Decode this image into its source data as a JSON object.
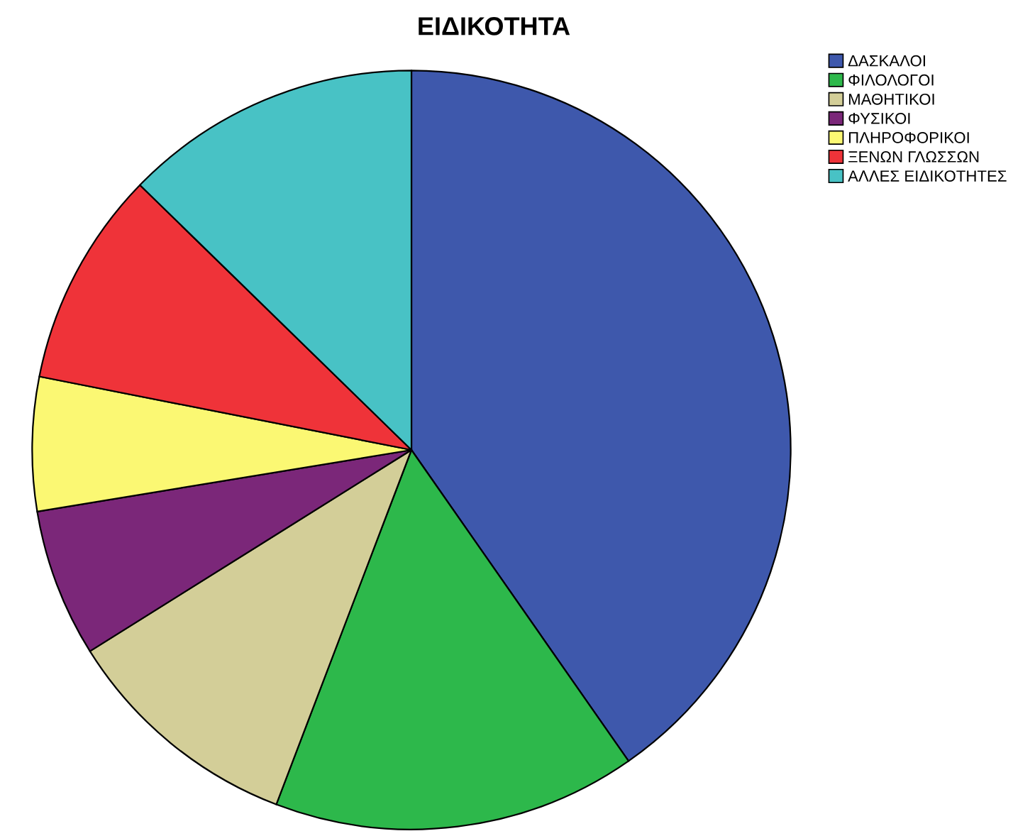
{
  "chart_data": {
    "type": "pie",
    "title": "ΕΙΔΙΚΟΤΗΤΑ",
    "categories": [
      "ΔΑΣΚΑΛΟΙ",
      "ΦΙΛΟΛΟΓΟΙ",
      "ΜΑΘΗΤΙΚΟΙ",
      "ΦΥΣΙΚΟΙ",
      "ΠΛΗΡΟΦΟΡΙΚΟΙ",
      "ΞΕΝΩΝ ΓΛΩΣΣΩΝ",
      "ΑΛΛΕΣ ΕΙΔΙΚΟΤΗΤΕΣ"
    ],
    "values": [
      40.3,
      15.5,
      10.3,
      6.3,
      5.7,
      9.2,
      12.7
    ],
    "colors": [
      "#3e58ac",
      "#2db84b",
      "#d3ce98",
      "#7b2779",
      "#fbf873",
      "#ef3339",
      "#48c2c5"
    ],
    "legend": "top right"
  }
}
